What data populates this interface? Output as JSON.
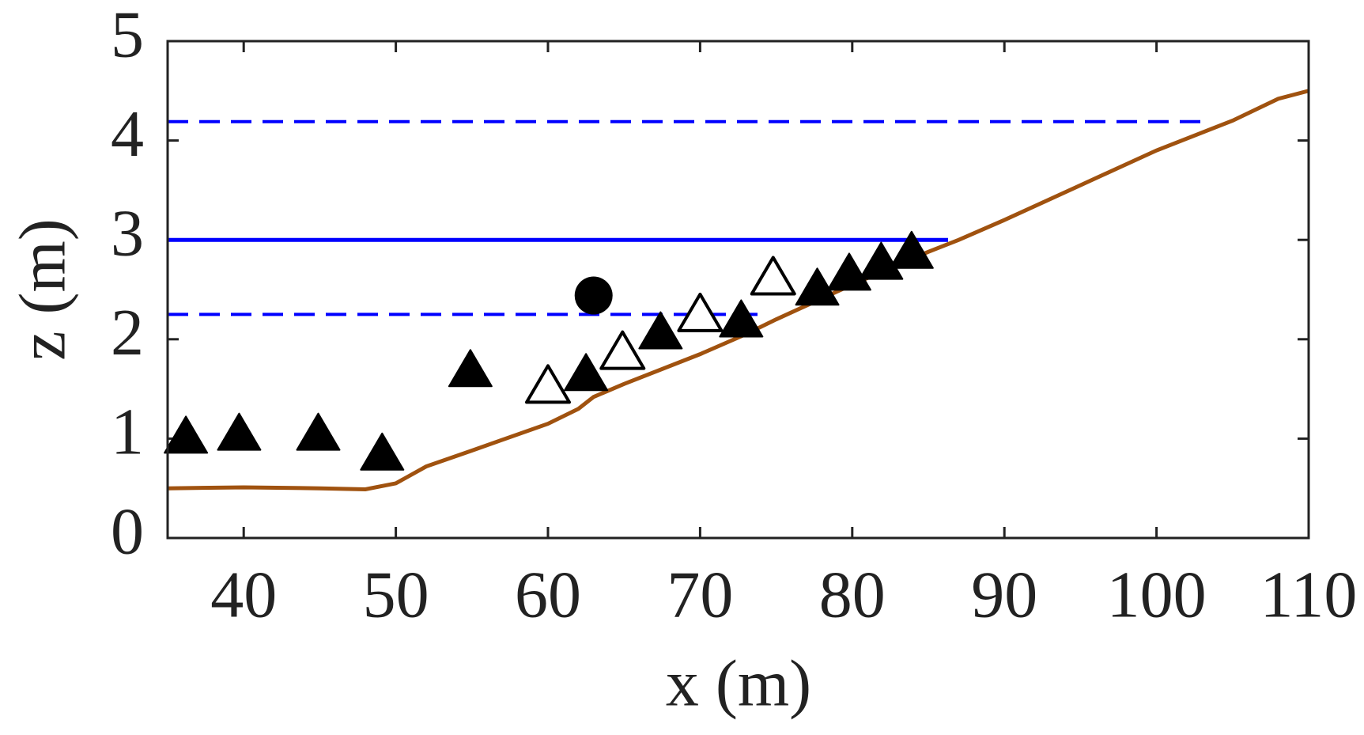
{
  "chart_data": {
    "type": "line",
    "xlabel": "x (m)",
    "ylabel": "z (m)",
    "xlim": [
      35,
      110
    ],
    "ylim": [
      0,
      5
    ],
    "xticks": [
      40,
      50,
      60,
      70,
      80,
      90,
      100,
      110
    ],
    "yticks": [
      0,
      1,
      2,
      3,
      4,
      5
    ],
    "series": [
      {
        "color": "#a0520f",
        "style": "solid",
        "marker": "none",
        "x": [
          35,
          40,
          45,
          48,
          50,
          52,
          55,
          60,
          62,
          63,
          65,
          70,
          73,
          75,
          80,
          85,
          87,
          90,
          95,
          100,
          105,
          108,
          110
        ],
        "values": [
          0.5,
          0.51,
          0.5,
          0.49,
          0.55,
          0.72,
          0.88,
          1.15,
          1.3,
          1.42,
          1.55,
          1.85,
          2.05,
          2.2,
          2.55,
          2.88,
          3.0,
          3.2,
          3.55,
          3.9,
          4.2,
          4.42,
          4.5
        ]
      },
      {
        "color": "#0000ff",
        "style": "solid",
        "marker": "none",
        "x": [
          35,
          86.3
        ],
        "values": [
          3,
          3
        ]
      },
      {
        "color": "#0000ff",
        "style": "dashed",
        "marker": "none",
        "x": [
          35,
          103.3
        ],
        "values": [
          4.19,
          4.19
        ]
      },
      {
        "color": "#0000ff",
        "style": "dashed",
        "marker": "none",
        "x": [
          35,
          74.3
        ],
        "values": [
          2.25,
          2.25
        ]
      },
      {
        "color": "#000000",
        "style": "none",
        "marker": "filled-triangle",
        "x": [
          36.2,
          39.7,
          44.9,
          49.1,
          54.9,
          62.5,
          67.4,
          72.7,
          77.7,
          79.8,
          81.9,
          83.9
        ],
        "values": [
          1.0,
          1.03,
          1.03,
          0.83,
          1.67,
          1.63,
          2.05,
          2.17,
          2.49,
          2.64,
          2.75,
          2.86
        ]
      },
      {
        "color": "#000000",
        "style": "none",
        "marker": "open-triangle",
        "x": [
          60.0,
          64.9,
          70.0,
          74.8
        ],
        "values": [
          1.51,
          1.85,
          2.23,
          2.6
        ]
      },
      {
        "color": "#000000",
        "style": "none",
        "marker": "filled-circle",
        "x": [
          63.0
        ],
        "values": [
          2.44
        ]
      }
    ]
  }
}
